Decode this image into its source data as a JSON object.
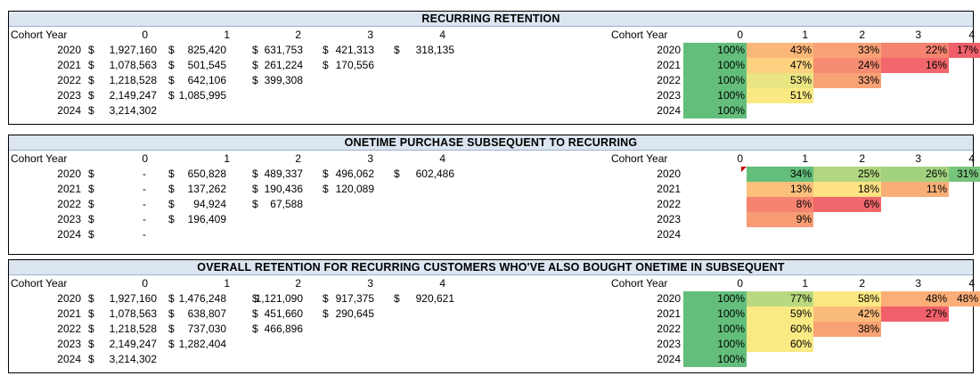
{
  "sections": [
    {
      "title": "RECURRING RETENTION",
      "header": {
        "label": "Cohort Year",
        "cols": [
          "0",
          "1",
          "2",
          "3",
          "4"
        ]
      },
      "rows": [
        {
          "year": "2020",
          "values": [
            "1,927,160",
            "825,420",
            "631,753",
            "421,313",
            "318,135"
          ],
          "pcts": [
            "100%",
            "43%",
            "33%",
            "22%",
            "17%"
          ]
        },
        {
          "year": "2021",
          "values": [
            "1,078,563",
            "501,545",
            "261,224",
            "170,556"
          ],
          "pcts": [
            "100%",
            "47%",
            "24%",
            "16%"
          ]
        },
        {
          "year": "2022",
          "values": [
            "1,218,528",
            "642,106",
            "399,308"
          ],
          "pcts": [
            "100%",
            "53%",
            "33%"
          ]
        },
        {
          "year": "2023",
          "values": [
            "2,149,247",
            "1,085,995"
          ],
          "pcts": [
            "100%",
            "51%"
          ]
        },
        {
          "year": "2024",
          "values": [
            "3,214,302"
          ],
          "pcts": [
            "100%"
          ]
        }
      ],
      "colors": [
        [
          "#63be7b",
          "#fbb77a",
          "#f8a276",
          "#f4836f",
          "#f0606a"
        ],
        [
          "#63be7b",
          "#fdd17f",
          "#f58c71",
          "#f1676b"
        ],
        [
          "#63be7b",
          "#e9e583",
          "#f8a276"
        ],
        [
          "#63be7b",
          "#f9ea84"
        ],
        [
          "#63be7b"
        ]
      ]
    },
    {
      "title": "ONETIME PURCHASE SUBSEQUENT TO RECURRING",
      "header": {
        "label": "Cohort Year",
        "cols": [
          "0",
          "1",
          "2",
          "3",
          "4"
        ]
      },
      "rows": [
        {
          "year": "2020",
          "values": [
            "-",
            "650,828",
            "489,337",
            "496,062",
            "602,486"
          ],
          "pcts": [
            "",
            "34%",
            "25%",
            "26%",
            "31%"
          ]
        },
        {
          "year": "2021",
          "values": [
            "-",
            "137,262",
            "190,436",
            "120,089"
          ],
          "pcts": [
            "",
            "13%",
            "18%",
            "11%"
          ]
        },
        {
          "year": "2022",
          "values": [
            "-",
            "94,924",
            "67,588"
          ],
          "pcts": [
            "",
            "8%",
            "6%"
          ]
        },
        {
          "year": "2023",
          "values": [
            "-",
            "196,409"
          ],
          "pcts": [
            "",
            "9%"
          ]
        },
        {
          "year": "2024",
          "values": [
            "-"
          ],
          "pcts": [
            ""
          ]
        }
      ],
      "colors": [
        [
          "",
          "#63be7b",
          "#b0d67f",
          "#a3d27e",
          "#77c47c"
        ],
        [
          "",
          "#fbc07c",
          "#fee283",
          "#f9ae78"
        ],
        [
          "",
          "#f4836f",
          "#f0676b"
        ],
        [
          "",
          "#f79c74"
        ],
        [
          ""
        ]
      ]
    },
    {
      "title": "OVERALL RETENTION FOR RECURRING CUSTOMERS WHO'VE ALSO BOUGHT ONETIME IN SUBSEQUENT",
      "header": {
        "label": "Cohort Year",
        "cols": [
          "0",
          "1",
          "2",
          "3",
          "4"
        ]
      },
      "rows": [
        {
          "year": "2020",
          "values": [
            "1,927,160",
            "1,476,248",
            "1,121,090",
            "917,375",
            "920,621"
          ],
          "pcts": [
            "100%",
            "77%",
            "58%",
            "48%",
            "48%"
          ]
        },
        {
          "year": "2021",
          "values": [
            "1,078,563",
            "638,807",
            "451,660",
            "290,645"
          ],
          "pcts": [
            "100%",
            "59%",
            "42%",
            "27%"
          ]
        },
        {
          "year": "2022",
          "values": [
            "1,218,528",
            "737,030",
            "466,896"
          ],
          "pcts": [
            "100%",
            "60%",
            "38%"
          ]
        },
        {
          "year": "2023",
          "values": [
            "2,149,247",
            "1,282,404"
          ],
          "pcts": [
            "100%",
            "60%"
          ]
        },
        {
          "year": "2024",
          "values": [
            "3,214,302"
          ],
          "pcts": [
            "100%"
          ]
        }
      ],
      "colors": [
        [
          "#63be7b",
          "#b9d980",
          "#fae883",
          "#fbae78",
          "#fbae78"
        ],
        [
          "#63be7b",
          "#f9ea84",
          "#fbbb7b",
          "#f0606a"
        ],
        [
          "#63be7b",
          "#f9ea84",
          "#f9a275"
        ],
        [
          "#63be7b",
          "#f9ea84"
        ],
        [
          "#63be7b"
        ]
      ]
    }
  ],
  "currency_symbol": "$"
}
